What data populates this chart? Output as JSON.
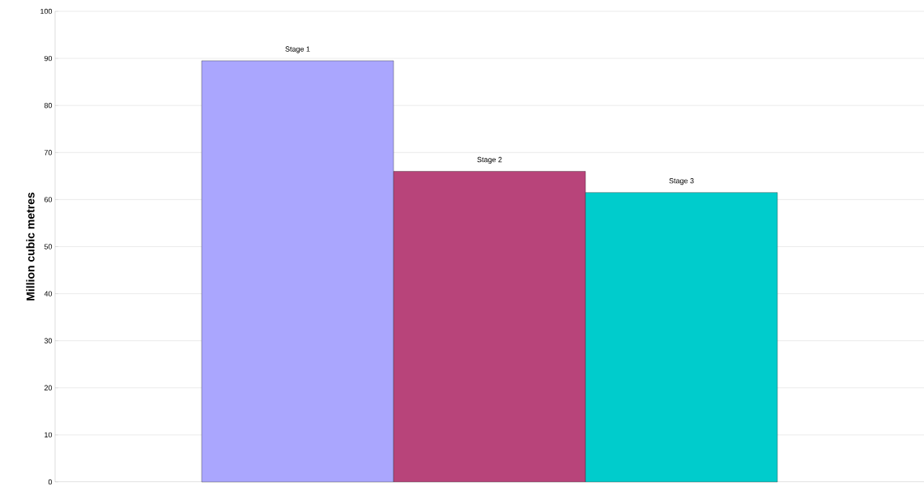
{
  "chart_data": {
    "type": "bar",
    "ylabel": "Million cubic metres",
    "categories": [
      null
    ],
    "series": [
      {
        "name": "Stage 1",
        "color": "#aaa6fe",
        "values": [
          89.5
        ]
      },
      {
        "name": "Stage 2",
        "color": "#b8447a",
        "values": [
          66
        ]
      },
      {
        "name": "Stage 3",
        "color": "#00cccc",
        "values": [
          61.5
        ]
      }
    ],
    "ylim": [
      0,
      100
    ],
    "yticks": [
      0,
      10,
      20,
      30,
      40,
      50,
      60,
      70,
      80,
      90,
      100
    ],
    "grid": "y"
  }
}
